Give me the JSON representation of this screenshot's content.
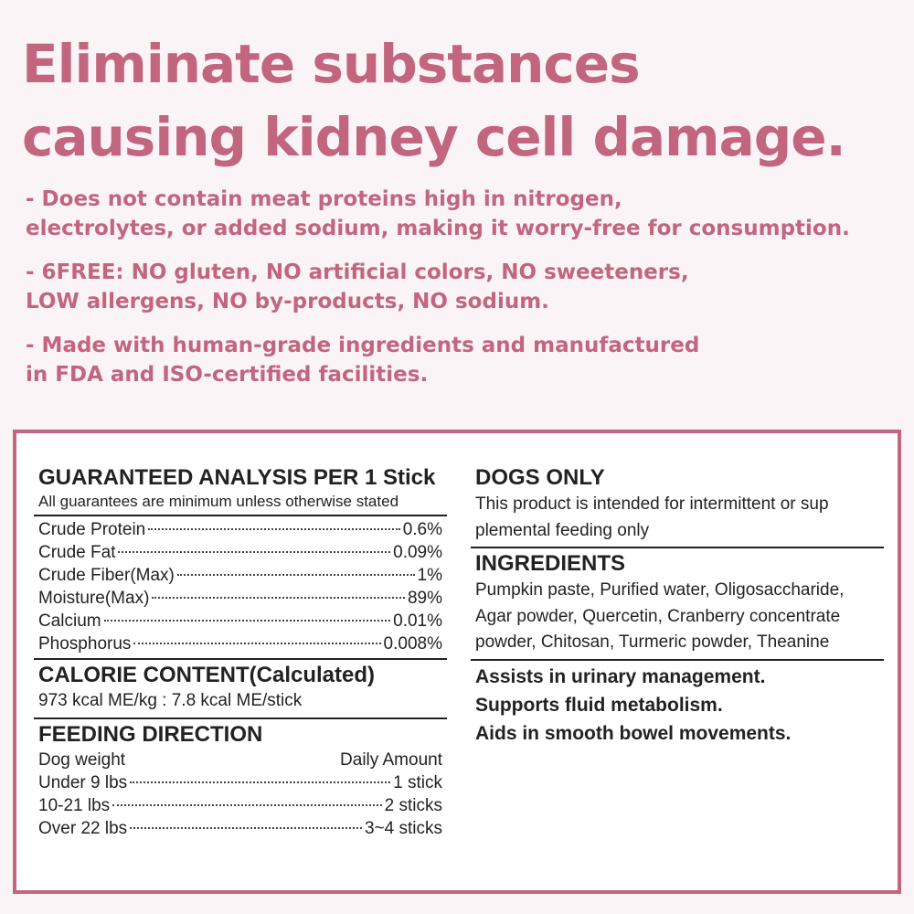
{
  "headline": [
    "Eliminate substances",
    "causing kidney cell damage."
  ],
  "bullets": [
    [
      "- Does not contain meat proteins high in nitrogen,",
      "electrolytes, or added sodium, making it worry-free for consumption."
    ],
    [
      "- 6FREE: NO gluten, NO artificial colors, NO sweeteners,",
      "LOW allergens, NO by-products, NO sodium."
    ],
    [
      "- Made with human-grade ingredients and manufactured",
      "in FDA and ISO-certified facilities."
    ]
  ],
  "analysis": {
    "title": "GUARANTEED ANALYSIS PER 1 Stick",
    "subtitle": "All guarantees are minimum unless otherwise stated",
    "rows": [
      {
        "label": "Crude Protein",
        "value": "0.6%"
      },
      {
        "label": "Crude Fat",
        "value": "0.09%"
      },
      {
        "label": "Crude Fiber(Max)",
        "value": "1%"
      },
      {
        "label": "Moisture(Max)",
        "value": "89%"
      },
      {
        "label": "Calcium",
        "value": "0.01%"
      },
      {
        "label": "Phosphorus",
        "value": "0.008%"
      }
    ]
  },
  "calorie": {
    "title": "CALORIE CONTENT(Calculated)",
    "text": "973 kcal ME/kg : 7.8 kcal ME/stick"
  },
  "feeding": {
    "title": "FEEDING DIRECTION",
    "col1": "Dog weight",
    "col2": "Daily Amount",
    "rows": [
      {
        "label": "Under 9 lbs",
        "value": "1 stick"
      },
      {
        "label": "10-21 lbs",
        "value": "2 sticks"
      },
      {
        "label": "Over 22 lbs",
        "value": "3~4 sticks"
      }
    ]
  },
  "dogs_only": {
    "title": "DOGS ONLY",
    "lines": [
      "This product is intended for intermittent or sup",
      "plemental feeding only"
    ]
  },
  "ingredients": {
    "title": "INGREDIENTS",
    "lines": [
      "Pumpkin paste, Purified water, Oligosaccharide,",
      "Agar powder, Quercetin, Cranberry concentrate",
      "powder, Chitosan, Turmeric powder, Theanine"
    ]
  },
  "benefits": [
    "Assists in urinary management.",
    "Supports fluid metabolism.",
    "Aids in smooth bowel movements."
  ],
  "colors": {
    "accent": "#c2657f",
    "background": "#fbf4f6",
    "text": "#222222"
  }
}
